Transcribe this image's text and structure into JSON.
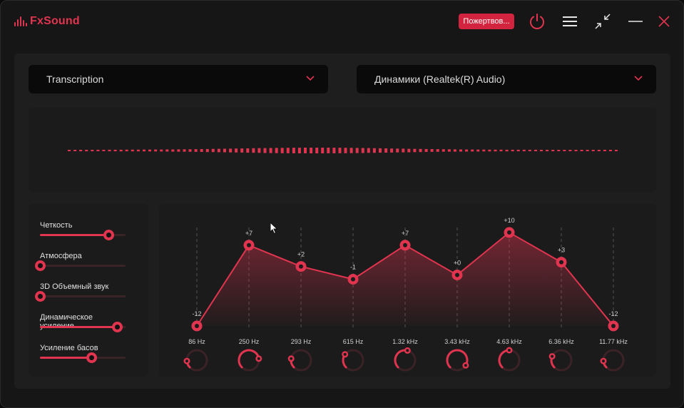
{
  "app": {
    "name": "FxSound",
    "donate_label": "Пожертвов..."
  },
  "presets": {
    "selected": "Transcription"
  },
  "output": {
    "selected": "Динамики (Realtek(R) Audio)"
  },
  "effects": [
    {
      "label": "Четкость",
      "value": 0.8
    },
    {
      "label": "Атмосфера",
      "value": 0.0
    },
    {
      "label": "3D Объемный звук",
      "value": 0.0
    },
    {
      "label": "Динамическое усиление",
      "value": 0.9
    },
    {
      "label": "Усиление басов",
      "value": 0.6
    }
  ],
  "equalizer": {
    "gain_range": [
      -12,
      12
    ],
    "bands": [
      {
        "freq": "86 Hz",
        "gain": -12,
        "gain_label": "-12"
      },
      {
        "freq": "250 Hz",
        "gain": 7,
        "gain_label": "+7"
      },
      {
        "freq": "293 Hz",
        "gain": 2,
        "gain_label": "+2"
      },
      {
        "freq": "615 Hz",
        "gain": -1,
        "gain_label": "-1"
      },
      {
        "freq": "1.32 kHz",
        "gain": 7,
        "gain_label": "+7"
      },
      {
        "freq": "3.43 kHz",
        "gain": 0,
        "gain_label": "+0"
      },
      {
        "freq": "4.63 kHz",
        "gain": 10,
        "gain_label": "+10"
      },
      {
        "freq": "6.36 kHz",
        "gain": 3,
        "gain_label": "+3"
      },
      {
        "freq": "11.77 kHz",
        "gain": -12,
        "gain_label": "-12"
      }
    ],
    "knobs": [
      0.15,
      0.8,
      0.2,
      0.3,
      0.55,
      0.95,
      0.5,
      0.25,
      0.15
    ]
  },
  "colors": {
    "accent": "#e0344f",
    "background": "#161616",
    "panel": "#1e1e1e",
    "field": "#0a0a0a"
  },
  "icons": {
    "power": "power-icon",
    "menu": "hamburger-menu-icon",
    "minimize_view": "collapse-arrows-icon",
    "minimize": "minimize-icon",
    "close": "close-icon"
  }
}
